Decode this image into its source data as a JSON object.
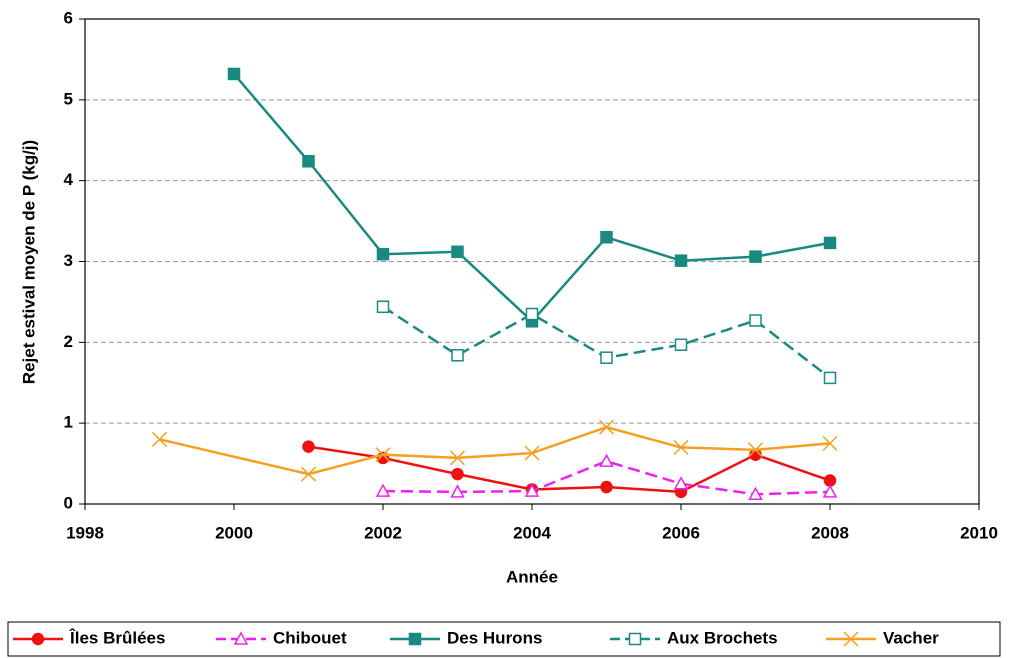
{
  "chart_data": {
    "type": "line",
    "x_label": "Année",
    "y_label": "Rejet estival moyen de P (kg/j)",
    "xlim": [
      1998,
      2010
    ],
    "xticks": [
      1998,
      2000,
      2002,
      2004,
      2006,
      2008,
      2010
    ],
    "ylim": [
      0,
      6
    ],
    "yticks": [
      0,
      1,
      2,
      3,
      4,
      5,
      6
    ],
    "grid": true,
    "legend": "bottom",
    "series": [
      {
        "name": "Îles Brûlées",
        "color": "#ee1111",
        "marker": "circle",
        "filled": true,
        "dashed": false,
        "x": [
          2001,
          2002,
          2003,
          2004,
          2005,
          2006,
          2007,
          2008
        ],
        "values": [
          0.71,
          0.57,
          0.37,
          0.18,
          0.21,
          0.15,
          0.61,
          0.29
        ]
      },
      {
        "name": "Chibouet",
        "color": "#ee22ee",
        "marker": "triangle",
        "filled": false,
        "dashed": true,
        "x": [
          2002,
          2003,
          2004,
          2005,
          2006,
          2007,
          2008
        ],
        "values": [
          0.16,
          0.15,
          0.16,
          0.53,
          0.25,
          0.12,
          0.15
        ]
      },
      {
        "name": "Des Hurons",
        "color": "#1a8a80",
        "marker": "square",
        "filled": true,
        "dashed": false,
        "x": [
          2000,
          2001,
          2002,
          2003,
          2004,
          2005,
          2006,
          2007,
          2008
        ],
        "values": [
          5.32,
          4.24,
          3.09,
          3.12,
          2.26,
          3.3,
          3.01,
          3.06,
          3.23
        ]
      },
      {
        "name": "Aux Brochets",
        "color": "#1a8a80",
        "marker": "square",
        "filled": false,
        "dashed": true,
        "x": [
          2002,
          2003,
          2004,
          2005,
          2006,
          2007,
          2008
        ],
        "values": [
          2.44,
          1.84,
          2.35,
          1.81,
          1.97,
          2.27,
          1.56
        ]
      },
      {
        "name": "Vacher",
        "color": "#f5a020",
        "marker": "x",
        "filled": false,
        "dashed": false,
        "x": [
          1999,
          2001,
          2002,
          2003,
          2004,
          2005,
          2006,
          2007,
          2008
        ],
        "values": [
          0.8,
          0.37,
          0.61,
          0.57,
          0.63,
          0.95,
          0.7,
          0.67,
          0.75
        ]
      }
    ]
  }
}
